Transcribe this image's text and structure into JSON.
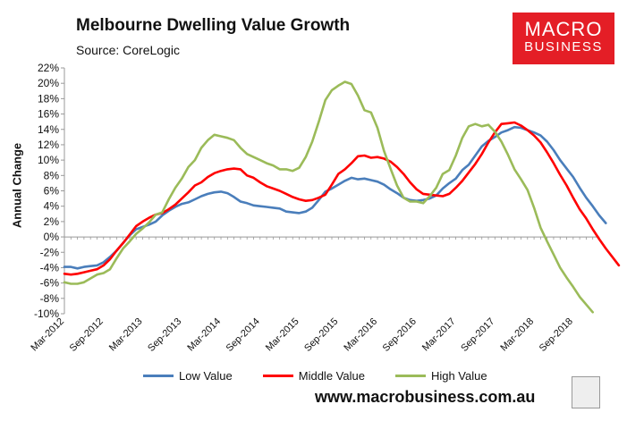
{
  "title": "Melbourne Dwelling Value Growth",
  "source": "Source: CoreLogic",
  "logo": {
    "line1": "MACRO",
    "line2": "BUSINESS"
  },
  "url": "www.macrobusiness.com.au",
  "chart_data": {
    "type": "line",
    "title": "Melbourne Dwelling Value Growth",
    "ylabel": "Annual Change",
    "ylim": [
      -10,
      22
    ],
    "ytick_step": 2,
    "y_unit": "%",
    "x_start": "Mar-2012",
    "x_tick_labels": [
      "Mar-2012",
      "Sep-2012",
      "Mar-2013",
      "Sep-2013",
      "Mar-2014",
      "Sep-2014",
      "Mar-2015",
      "Sep-2015",
      "Mar-2016",
      "Sep-2016",
      "Mar-2017",
      "Sep-2017",
      "Mar-2018",
      "Sep-2018"
    ],
    "legend_position": "bottom",
    "series": [
      {
        "name": "Low Value",
        "color": "#4a7ebb",
        "values": [
          -3.9,
          -3.9,
          -4.1,
          -3.9,
          -3.8,
          -3.7,
          -3.3,
          -2.6,
          -1.8,
          -0.8,
          0.2,
          1.0,
          1.3,
          1.6,
          2.0,
          2.8,
          3.4,
          3.9,
          4.3,
          4.5,
          4.9,
          5.3,
          5.6,
          5.8,
          5.9,
          5.7,
          5.2,
          4.6,
          4.4,
          4.1,
          4.0,
          3.9,
          3.8,
          3.7,
          3.3,
          3.2,
          3.1,
          3.3,
          3.8,
          4.8,
          5.9,
          6.3,
          6.8,
          7.3,
          7.7,
          7.5,
          7.6,
          7.4,
          7.2,
          6.8,
          6.2,
          5.7,
          5.1,
          4.8,
          4.7,
          4.8,
          5.0,
          5.4,
          6.3,
          7.0,
          7.6,
          8.7,
          9.4,
          10.6,
          11.8,
          12.5,
          13.0,
          13.6,
          13.9,
          14.3,
          14.2,
          13.9,
          13.6,
          13.2,
          12.4,
          11.3,
          10.0,
          8.9,
          7.8,
          6.4,
          5.1,
          4.0,
          2.8,
          1.8
        ]
      },
      {
        "name": "Middle Value",
        "color": "#ff0000",
        "values": [
          -4.8,
          -4.9,
          -4.8,
          -4.6,
          -4.4,
          -4.2,
          -3.7,
          -2.9,
          -1.8,
          -0.8,
          0.3,
          1.4,
          2.0,
          2.5,
          2.9,
          3.1,
          3.6,
          4.2,
          5.0,
          5.8,
          6.7,
          7.1,
          7.8,
          8.3,
          8.6,
          8.8,
          8.9,
          8.8,
          8.0,
          7.7,
          7.1,
          6.6,
          6.3,
          6.0,
          5.6,
          5.2,
          4.9,
          4.7,
          4.8,
          5.1,
          5.5,
          6.8,
          8.2,
          8.8,
          9.6,
          10.5,
          10.6,
          10.3,
          10.4,
          10.2,
          9.8,
          9.1,
          8.2,
          7.1,
          6.2,
          5.6,
          5.5,
          5.4,
          5.3,
          5.6,
          6.4,
          7.3,
          8.4,
          9.5,
          10.8,
          12.3,
          13.6,
          14.7,
          14.8,
          14.9,
          14.5,
          13.9,
          13.2,
          12.3,
          11.0,
          9.6,
          8.1,
          6.7,
          5.1,
          3.6,
          2.4,
          1.0,
          -0.3,
          -1.5,
          -2.6,
          -3.7
        ]
      },
      {
        "name": "High Value",
        "color": "#9bbb59",
        "values": [
          -5.9,
          -6.1,
          -6.1,
          -5.9,
          -5.4,
          -4.9,
          -4.7,
          -4.2,
          -2.8,
          -1.5,
          -0.6,
          0.4,
          1.1,
          1.9,
          2.9,
          3.2,
          4.9,
          6.4,
          7.6,
          9.1,
          10.0,
          11.6,
          12.6,
          13.3,
          13.1,
          12.9,
          12.6,
          11.6,
          10.8,
          10.4,
          10.0,
          9.6,
          9.3,
          8.8,
          8.8,
          8.6,
          9.0,
          10.4,
          12.4,
          15.0,
          17.8,
          19.1,
          19.7,
          20.2,
          19.9,
          18.4,
          16.5,
          16.2,
          14.2,
          11.2,
          8.9,
          6.7,
          5.1,
          4.6,
          4.6,
          4.4,
          5.3,
          6.4,
          8.2,
          8.7,
          10.6,
          12.9,
          14.4,
          14.7,
          14.4,
          14.6,
          13.7,
          12.4,
          10.7,
          8.8,
          7.5,
          6.1,
          3.8,
          1.2,
          -0.6,
          -2.3,
          -4.0,
          -5.3,
          -6.5,
          -7.8,
          -8.8,
          -9.8
        ]
      }
    ]
  }
}
